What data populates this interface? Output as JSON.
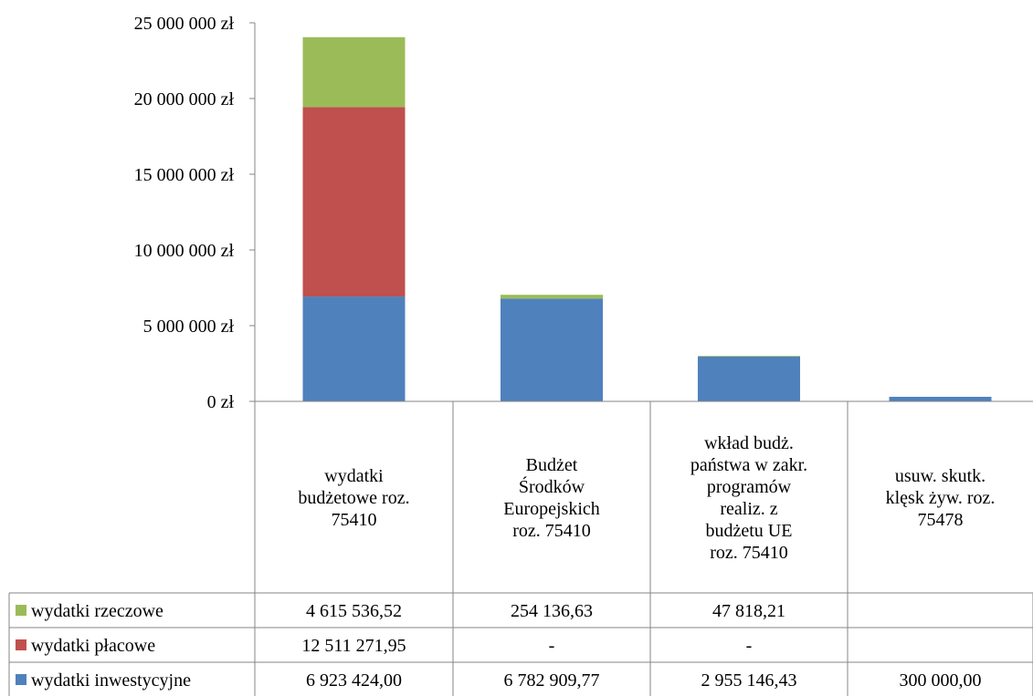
{
  "chart_data": {
    "type": "bar",
    "stacked": true,
    "ylim": [
      0,
      25000000
    ],
    "y_ticks": [
      0,
      5000000,
      10000000,
      15000000,
      20000000,
      25000000
    ],
    "y_tick_labels": [
      "0 zł",
      "5 000 000 zł",
      "10 000 000 zł",
      "15 000 000 zł",
      "20 000 000 zł",
      "25 000 000 zł"
    ],
    "grid": false,
    "legend": "table-left",
    "categories": [
      [
        "wydatki",
        "budżetowe roz.",
        "75410"
      ],
      [
        "Budżet",
        "Środków",
        "Europejskich",
        "roz. 75410"
      ],
      [
        "wkład budż.",
        "państwa w zakr.",
        "programów",
        "realiz. z",
        "budżetu UE",
        "roz. 75410"
      ],
      [
        "usuw. skutk.",
        "klęsk żyw. roz.",
        "75478"
      ]
    ],
    "series": [
      {
        "name": "wydatki inwestycyjne",
        "color": "#4F81BD",
        "values": [
          6923424.0,
          6782909.77,
          2955146.43,
          300000.0
        ],
        "labels": [
          "6 923 424,00",
          "6 782 909,77",
          "2 955 146,43",
          "300 000,00"
        ]
      },
      {
        "name": "wydatki płacowe",
        "color": "#C0504D",
        "values": [
          12511271.95,
          0,
          0,
          0
        ],
        "labels": [
          "12 511 271,95",
          "-",
          "-",
          ""
        ]
      },
      {
        "name": "wydatki rzeczowe",
        "color": "#9BBB59",
        "values": [
          4615536.52,
          254136.63,
          47818.21,
          0
        ],
        "labels": [
          "4 615 536,52",
          "254 136,63",
          "47 818,21",
          ""
        ]
      }
    ],
    "table_row_order": [
      "wydatki rzeczowe",
      "wydatki płacowe",
      "wydatki inwestycyjne"
    ]
  }
}
